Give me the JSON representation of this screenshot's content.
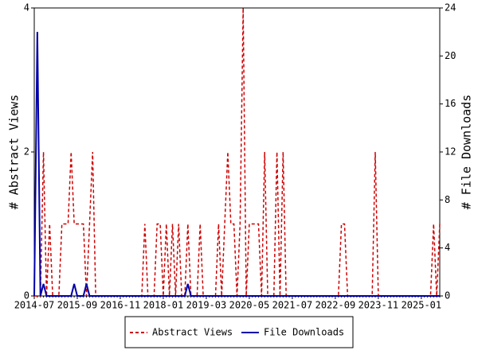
{
  "chart_data": {
    "type": "line",
    "ylabel": "# Abstract Views",
    "y2label": "# File Downloads",
    "categories": [
      "2014-07",
      null,
      null,
      null,
      null,
      null,
      null,
      null,
      null,
      null,
      null,
      null,
      null,
      null,
      "2015-09",
      null,
      null,
      null,
      null,
      null,
      null,
      null,
      null,
      null,
      null,
      null,
      null,
      null,
      "2016-11",
      null,
      null,
      null,
      null,
      null,
      null,
      null,
      null,
      null,
      null,
      null,
      null,
      null,
      "2018-01",
      null,
      null,
      null,
      null,
      null,
      null,
      null,
      null,
      null,
      null,
      null,
      null,
      null,
      "2019-03",
      null,
      null,
      null,
      null,
      null,
      null,
      null,
      null,
      null,
      null,
      null,
      null,
      null,
      "2020-05",
      null,
      null,
      null,
      null,
      null,
      null,
      null,
      null,
      null,
      null,
      null,
      null,
      null,
      "2021-07",
      null,
      null,
      null,
      null,
      null,
      null,
      null,
      null,
      null,
      null,
      null,
      null,
      null,
      "2022-09",
      null,
      null,
      null,
      null,
      null,
      null,
      null,
      null,
      null,
      null,
      null,
      null,
      null,
      "2023-11",
      null,
      null,
      null,
      null,
      null,
      null,
      null,
      null,
      null,
      null,
      null,
      null,
      null,
      "2025-01",
      null,
      null,
      null,
      null,
      null,
      null
    ],
    "series": [
      {
        "name": "Abstract Views",
        "color": "#cc0000",
        "dash": true,
        "axis": "y",
        "values": [
          0,
          0,
          0,
          2,
          0,
          1,
          0,
          0,
          0,
          1,
          1,
          1,
          2,
          1,
          1,
          1,
          1,
          0,
          1,
          2,
          0,
          0,
          0,
          0,
          0,
          0,
          0,
          0,
          0,
          0,
          0,
          0,
          0,
          0,
          0,
          0,
          1,
          0,
          0,
          0,
          1,
          1,
          0,
          1,
          0,
          1,
          0,
          1,
          0,
          0,
          1,
          0,
          0,
          0,
          1,
          0,
          0,
          0,
          0,
          0,
          1,
          0,
          1,
          2,
          1,
          1,
          0,
          1,
          4,
          0,
          1,
          1,
          1,
          1,
          0,
          2,
          0,
          0,
          0,
          2,
          0,
          2,
          0,
          0,
          0,
          0,
          0,
          0,
          0,
          0,
          0,
          0,
          0,
          0,
          0,
          0,
          0,
          0,
          0,
          0,
          1,
          1,
          0,
          0,
          0,
          0,
          0,
          0,
          0,
          0,
          0,
          2,
          0,
          0,
          0,
          0,
          0,
          0,
          0,
          0,
          0,
          0,
          0,
          0,
          0,
          0,
          0,
          0,
          0,
          0,
          1,
          0,
          1
        ]
      },
      {
        "name": "File Downloads",
        "color": "#0000aa",
        "dash": false,
        "axis": "y2",
        "values": [
          0,
          22,
          0,
          1,
          0,
          0,
          0,
          0,
          0,
          0,
          0,
          0,
          0,
          1,
          0,
          0,
          0,
          1,
          0,
          0,
          0,
          0,
          0,
          0,
          0,
          0,
          0,
          0,
          0,
          0,
          0,
          0,
          0,
          0,
          0,
          0,
          0,
          0,
          0,
          0,
          0,
          0,
          0,
          0,
          0,
          0,
          0,
          0,
          0,
          0,
          1,
          0,
          0,
          0,
          0,
          0,
          0,
          0,
          0,
          0,
          0,
          0,
          0,
          0,
          0,
          0,
          0,
          0,
          0,
          0,
          0,
          0,
          0,
          0,
          0,
          0,
          0,
          0,
          0,
          0,
          0,
          0,
          0,
          0,
          0,
          0,
          0,
          0,
          0,
          0,
          0,
          0,
          0,
          0,
          0,
          0,
          0,
          0,
          0,
          0,
          0,
          0,
          0,
          0,
          0,
          0,
          0,
          0,
          0,
          0,
          0,
          0,
          0,
          0,
          0,
          0,
          0,
          0,
          0,
          0,
          0,
          0,
          0,
          0,
          0,
          0,
          0,
          0,
          0,
          0,
          0,
          0,
          0
        ]
      }
    ],
    "ylim": [
      0,
      4
    ],
    "yticks": [
      0,
      2,
      4
    ],
    "y2lim": [
      0,
      24
    ],
    "y2ticks": [
      0,
      4,
      8,
      12,
      16,
      20,
      24
    ],
    "grid": false,
    "legend": "bottom"
  }
}
